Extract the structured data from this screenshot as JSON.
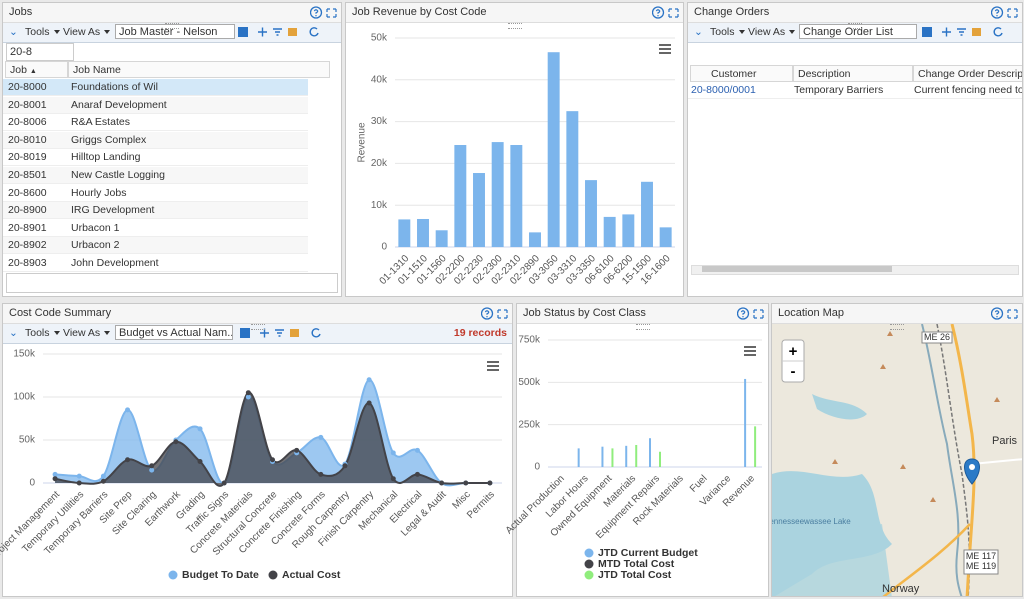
{
  "panels": {
    "jobs": {
      "tools": "Tools",
      "view_as": "View As",
      "view": "Job Master - Nelson",
      "filter": "20-8",
      "title": "Jobs",
      "columns": [
        "Job",
        "Job Name"
      ],
      "rows": [
        [
          "20-8000",
          "Foundations of Wil"
        ],
        [
          "20-8001",
          "Anaraf Development"
        ],
        [
          "20-8006",
          "R&A Estates"
        ],
        [
          "20-8010",
          "Griggs Complex"
        ],
        [
          "20-8019",
          "Hilltop Landing"
        ],
        [
          "20-8501",
          "New Castle Logging"
        ],
        [
          "20-8600",
          "Hourly Jobs"
        ],
        [
          "20-8900",
          "IRG Development"
        ],
        [
          "20-8901",
          "Urbacon 1"
        ],
        [
          "20-8902",
          "Urbacon 2"
        ],
        [
          "20-8903",
          "John Development"
        ]
      ]
    },
    "change_orders": {
      "title": "Change Orders",
      "tools": "Tools",
      "view_as": "View As",
      "view": "Change Order List",
      "columns": [
        "Customer Reference",
        "Description",
        "Change Order Descriptio"
      ],
      "rows": [
        [
          "20-8000/0001",
          "Temporary Barriers",
          "Current fencing need to be m"
        ]
      ]
    },
    "cost_code_summary": {
      "title": "Cost Code Summary",
      "tools": "Tools",
      "view_as": "View As",
      "view": "Budget vs Actual Nam...",
      "records": "19 records"
    },
    "location_map": {
      "title": "Location Map",
      "zoom_in": "+",
      "zoom_out": "-",
      "labels": [
        "ME 26",
        "Paris",
        "ME 117",
        "ME 119",
        "Norway",
        "Pennesseewassee Lake"
      ]
    }
  },
  "chart_data": [
    {
      "type": "bar",
      "title": "Job Revenue by Cost Code",
      "y_label": "Revenue",
      "color": "#7cb5ec",
      "grid": true,
      "categories": [
        "01-1310",
        "01-1510",
        "01-1560",
        "02-2200",
        "02-2230",
        "02-2300",
        "02-2310",
        "02-2890",
        "03-3050",
        "03-3310",
        "03-3350",
        "06-6100",
        "06-6200",
        "15-1500",
        "16-1600"
      ],
      "values": [
        6600,
        6700,
        4000,
        24400,
        17700,
        25100,
        24400,
        3500,
        46600,
        32500,
        16000,
        7200,
        7800,
        15600,
        4700
      ],
      "ylim": [
        0,
        50000
      ],
      "yticks": [
        0,
        {
          "value": 10000,
          "label": "10k"
        },
        {
          "value": 20000,
          "label": "20k"
        },
        {
          "value": 30000,
          "label": "30k"
        },
        {
          "value": 40000,
          "label": "40k"
        },
        {
          "value": 50000,
          "label": "50k"
        }
      ]
    },
    {
      "type": "area",
      "title": "Cost Code Summary",
      "grid": true,
      "legend": "bottom",
      "categories": [
        "Project Management",
        "Temporary Utilities",
        "Temporary Barriers",
        "Site Prep",
        "Site Clearing",
        "Earthwork",
        "Grading",
        "Traffic Signs",
        "Concrete Materials",
        "Structural Concrete",
        "Concrete Finishing",
        "Concrete Forms",
        "Rough Carpentry",
        "Finish Carpentry",
        "Mechanical",
        "Electrical",
        "Legal & Audit",
        "Misc",
        "Permits"
      ],
      "series": [
        {
          "name": "Budget To Date",
          "color": "#7cb5ec",
          "values": [
            10000,
            8000,
            8000,
            85000,
            15000,
            50000,
            63000,
            0,
            100000,
            25000,
            35000,
            53000,
            22000,
            120000,
            35000,
            38000,
            0,
            0,
            0
          ]
        },
        {
          "name": "Actual Cost",
          "color": "#434348",
          "values": [
            5000,
            0,
            2000,
            27000,
            20000,
            48000,
            25000,
            0,
            105000,
            27000,
            38000,
            10000,
            20000,
            93000,
            5000,
            10000,
            0,
            0,
            0
          ]
        }
      ],
      "ylim": [
        0,
        150000
      ],
      "yticks": [
        0,
        {
          "value": 50000,
          "label": "50k"
        },
        {
          "value": 100000,
          "label": "100k"
        },
        {
          "value": 150000,
          "label": "150k"
        }
      ]
    },
    {
      "type": "bar",
      "title": "Job Status by Cost Class",
      "grid": true,
      "legend": "bottom",
      "categories": [
        "Actual Production",
        "Labor Hours",
        "Owned Equipment",
        "Materials",
        "Equipment Repairs",
        "Rock Materials",
        "Fuel",
        "Variance",
        "Revenue"
      ],
      "series": [
        {
          "name": "JTD Current Budget",
          "color": "#7cb5ec",
          "values": [
            0,
            110000,
            120000,
            125000,
            170000,
            0,
            0,
            0,
            520000
          ]
        },
        {
          "name": "MTD Total Cost",
          "color": "#434348",
          "values": [
            0,
            0,
            0,
            0,
            0,
            0,
            0,
            0,
            0
          ]
        },
        {
          "name": "JTD Total Cost",
          "color": "#90ed7d",
          "values": [
            0,
            0,
            110000,
            130000,
            90000,
            0,
            0,
            0,
            240000
          ]
        }
      ],
      "ylim": [
        0,
        750000
      ],
      "yticks": [
        0,
        {
          "value": 250000,
          "label": "250k"
        },
        {
          "value": 500000,
          "label": "500k"
        },
        {
          "value": 750000,
          "label": "750k"
        }
      ]
    }
  ]
}
